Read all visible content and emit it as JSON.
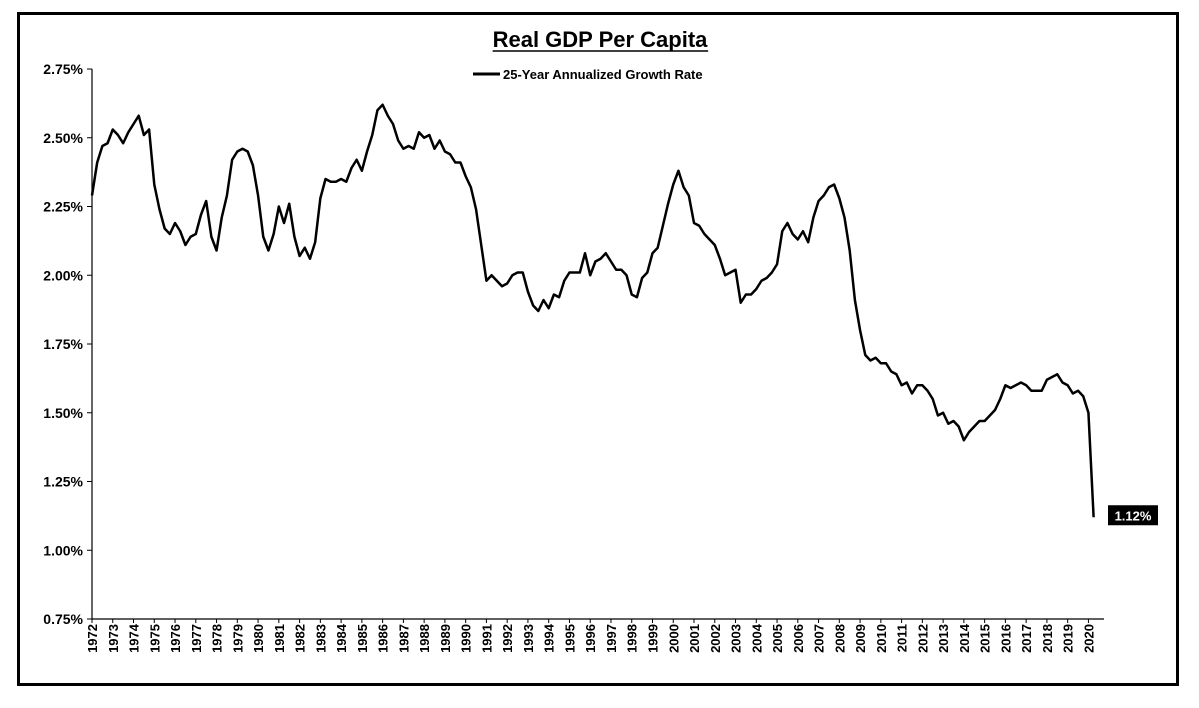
{
  "chart_data": {
    "type": "line",
    "title": "Real GDP Per Capita",
    "xlabel": "",
    "ylabel": "",
    "legend_position": "top-center",
    "grid": false,
    "ylim": [
      0.75,
      2.75
    ],
    "xlim": [
      1972,
      2020.75
    ],
    "y_ticks": [
      "0.75%",
      "1.00%",
      "1.25%",
      "1.50%",
      "1.75%",
      "2.00%",
      "2.25%",
      "2.50%",
      "2.75%"
    ],
    "y_tick_values": [
      0.75,
      1.0,
      1.25,
      1.5,
      1.75,
      2.0,
      2.25,
      2.5,
      2.75
    ],
    "x_ticks": [
      "1972",
      "1973",
      "1974",
      "1975",
      "1976",
      "1977",
      "1978",
      "1979",
      "1980",
      "1981",
      "1982",
      "1983",
      "1984",
      "1985",
      "1986",
      "1987",
      "1988",
      "1989",
      "1990",
      "1991",
      "1992",
      "1993",
      "1994",
      "1995",
      "1996",
      "1997",
      "1998",
      "1999",
      "2000",
      "2001",
      "2002",
      "2003",
      "2004",
      "2005",
      "2006",
      "2007",
      "2008",
      "2009",
      "2010",
      "2011",
      "2012",
      "2013",
      "2014",
      "2015",
      "2016",
      "2017",
      "2018",
      "2019",
      "2020"
    ],
    "series": [
      {
        "name": "25-Year Annualized Growth Rate",
        "color": "#000000",
        "x": [
          1972.0,
          1972.25,
          1972.5,
          1972.75,
          1973.0,
          1973.25,
          1973.5,
          1973.75,
          1974.0,
          1974.25,
          1974.5,
          1974.75,
          1975.0,
          1975.25,
          1975.5,
          1975.75,
          1976.0,
          1976.25,
          1976.5,
          1976.75,
          1977.0,
          1977.25,
          1977.5,
          1977.75,
          1978.0,
          1978.25,
          1978.5,
          1978.75,
          1979.0,
          1979.25,
          1979.5,
          1979.75,
          1980.0,
          1980.25,
          1980.5,
          1980.75,
          1981.0,
          1981.25,
          1981.5,
          1981.75,
          1982.0,
          1982.25,
          1982.5,
          1982.75,
          1983.0,
          1983.25,
          1983.5,
          1983.75,
          1984.0,
          1984.25,
          1984.5,
          1984.75,
          1985.0,
          1985.25,
          1985.5,
          1985.75,
          1986.0,
          1986.25,
          1986.5,
          1986.75,
          1987.0,
          1987.25,
          1987.5,
          1987.75,
          1988.0,
          1988.25,
          1988.5,
          1988.75,
          1989.0,
          1989.25,
          1989.5,
          1989.75,
          1990.0,
          1990.25,
          1990.5,
          1990.75,
          1991.0,
          1991.25,
          1991.5,
          1991.75,
          1992.0,
          1992.25,
          1992.5,
          1992.75,
          1993.0,
          1993.25,
          1993.5,
          1993.75,
          1994.0,
          1994.25,
          1994.5,
          1994.75,
          1995.0,
          1995.25,
          1995.5,
          1995.75,
          1996.0,
          1996.25,
          1996.5,
          1996.75,
          1997.0,
          1997.25,
          1997.5,
          1997.75,
          1998.0,
          1998.25,
          1998.5,
          1998.75,
          1999.0,
          1999.25,
          1999.5,
          1999.75,
          2000.0,
          2000.25,
          2000.5,
          2000.75,
          2001.0,
          2001.25,
          2001.5,
          2001.75,
          2002.0,
          2002.25,
          2002.5,
          2002.75,
          2003.0,
          2003.25,
          2003.5,
          2003.75,
          2004.0,
          2004.25,
          2004.5,
          2004.75,
          2005.0,
          2005.25,
          2005.5,
          2005.75,
          2006.0,
          2006.25,
          2006.5,
          2006.75,
          2007.0,
          2007.25,
          2007.5,
          2007.75,
          2008.0,
          2008.25,
          2008.5,
          2008.75,
          2009.0,
          2009.25,
          2009.5,
          2009.75,
          2010.0,
          2010.25,
          2010.5,
          2010.75,
          2011.0,
          2011.25,
          2011.5,
          2011.75,
          2012.0,
          2012.25,
          2012.5,
          2012.75,
          2013.0,
          2013.25,
          2013.5,
          2013.75,
          2014.0,
          2014.25,
          2014.5,
          2014.75,
          2015.0,
          2015.25,
          2015.5,
          2015.75,
          2016.0,
          2016.25,
          2016.5,
          2016.75,
          2017.0,
          2017.25,
          2017.5,
          2017.75,
          2018.0,
          2018.25,
          2018.5,
          2018.75,
          2019.0,
          2019.25,
          2019.5,
          2019.75,
          2020.0,
          2020.25
        ],
        "values": [
          2.29,
          2.41,
          2.47,
          2.48,
          2.53,
          2.51,
          2.48,
          2.52,
          2.55,
          2.58,
          2.51,
          2.53,
          2.33,
          2.24,
          2.17,
          2.15,
          2.19,
          2.16,
          2.11,
          2.14,
          2.15,
          2.22,
          2.27,
          2.14,
          2.09,
          2.21,
          2.29,
          2.42,
          2.45,
          2.46,
          2.45,
          2.4,
          2.29,
          2.14,
          2.09,
          2.15,
          2.25,
          2.19,
          2.26,
          2.14,
          2.07,
          2.1,
          2.06,
          2.12,
          2.28,
          2.35,
          2.34,
          2.34,
          2.35,
          2.34,
          2.39,
          2.42,
          2.38,
          2.45,
          2.51,
          2.6,
          2.62,
          2.58,
          2.55,
          2.49,
          2.46,
          2.47,
          2.46,
          2.52,
          2.5,
          2.51,
          2.46,
          2.49,
          2.45,
          2.44,
          2.41,
          2.41,
          2.36,
          2.32,
          2.24,
          2.11,
          1.98,
          2.0,
          1.98,
          1.96,
          1.97,
          2.0,
          2.01,
          2.01,
          1.94,
          1.89,
          1.87,
          1.91,
          1.88,
          1.93,
          1.92,
          1.98,
          2.01,
          2.01,
          2.01,
          2.08,
          2.0,
          2.05,
          2.06,
          2.08,
          2.05,
          2.02,
          2.02,
          2.0,
          1.93,
          1.92,
          1.99,
          2.01,
          2.08,
          2.1,
          2.18,
          2.26,
          2.33,
          2.38,
          2.32,
          2.29,
          2.19,
          2.18,
          2.15,
          2.13,
          2.11,
          2.06,
          2.0,
          2.01,
          2.02,
          1.9,
          1.93,
          1.93,
          1.95,
          1.98,
          1.99,
          2.01,
          2.04,
          2.16,
          2.19,
          2.15,
          2.13,
          2.16,
          2.12,
          2.21,
          2.27,
          2.29,
          2.32,
          2.33,
          2.28,
          2.21,
          2.09,
          1.91,
          1.8,
          1.71,
          1.69,
          1.7,
          1.68,
          1.68,
          1.65,
          1.64,
          1.6,
          1.61,
          1.57,
          1.6,
          1.6,
          1.58,
          1.55,
          1.49,
          1.5,
          1.46,
          1.47,
          1.45,
          1.4,
          1.43,
          1.45,
          1.47,
          1.47,
          1.49,
          1.51,
          1.55,
          1.6,
          1.59,
          1.6,
          1.61,
          1.6,
          1.58,
          1.58,
          1.58,
          1.62,
          1.63,
          1.64,
          1.61,
          1.6,
          1.57,
          1.58,
          1.56,
          1.5,
          1.12
        ]
      }
    ],
    "end_label": "1.12%"
  }
}
